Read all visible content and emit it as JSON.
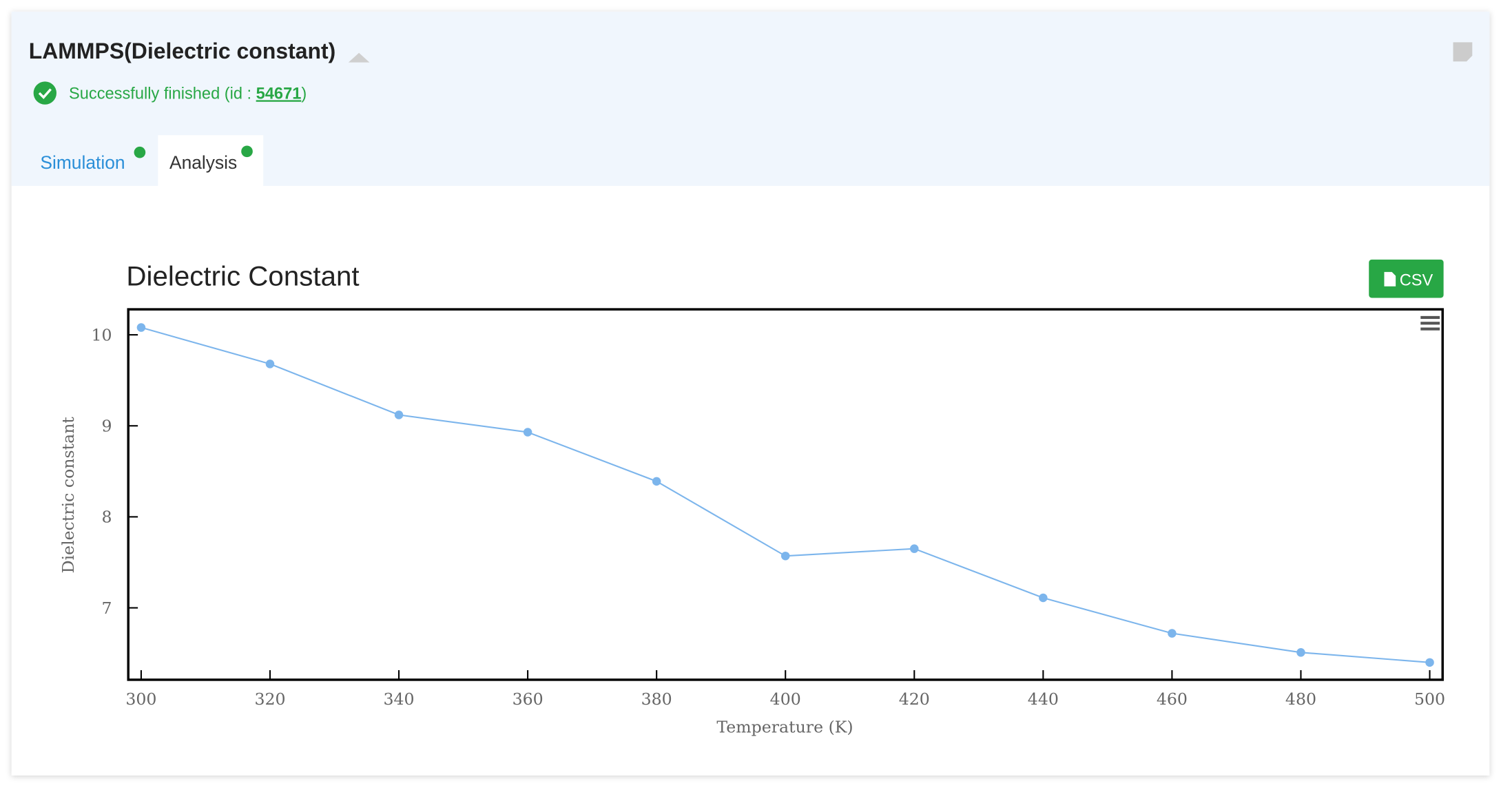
{
  "header": {
    "title": "LAMMPS(Dielectric constant)",
    "status": {
      "prefix": "Successfully finished (id : ",
      "id": "54671",
      "suffix": ")"
    }
  },
  "tabs": [
    "Simulation",
    "Analysis"
  ],
  "csv_button": "CSV",
  "chart_data": {
    "type": "line",
    "title": "Dielectric Constant",
    "x_label": "Temperature (K)",
    "y_label": "Dielectric constant",
    "x": [
      300,
      320,
      340,
      360,
      380,
      400,
      420,
      440,
      460,
      480,
      500
    ],
    "series": [
      {
        "name": "Dielectric constant",
        "color": "#7cb5ec",
        "values": [
          10.08,
          9.68,
          9.12,
          8.93,
          8.39,
          7.57,
          7.65,
          7.11,
          6.72,
          6.51,
          6.4
        ]
      }
    ],
    "xlim": [
      298,
      502
    ],
    "ylim": [
      6.21,
      10.28
    ],
    "xticks": [
      300,
      320,
      340,
      360,
      380,
      400,
      420,
      440,
      460,
      480,
      500
    ],
    "yticks": [
      7,
      8,
      9,
      10
    ]
  }
}
